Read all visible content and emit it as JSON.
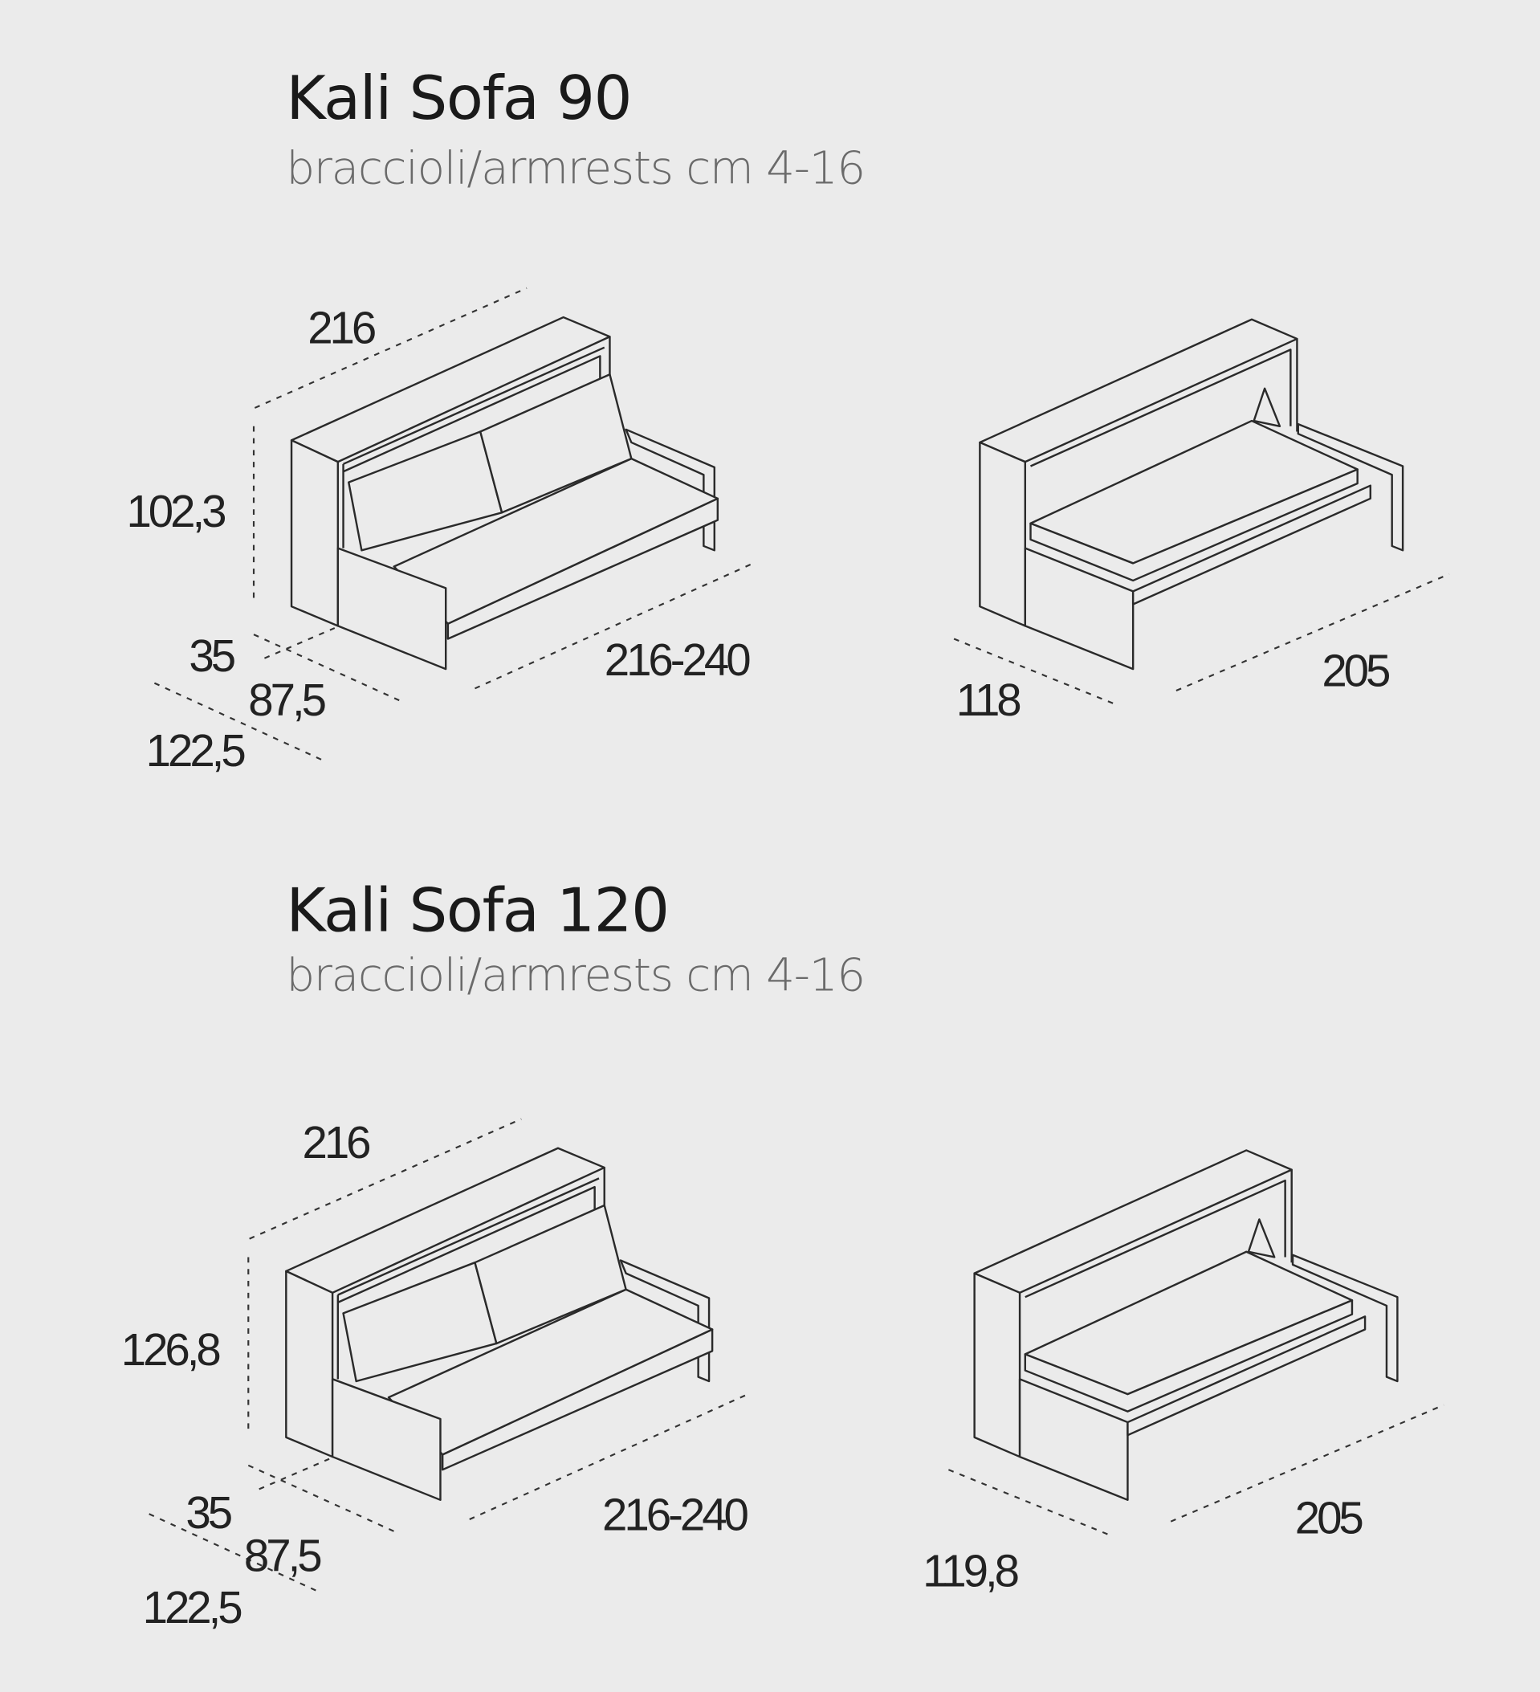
{
  "models": [
    {
      "title": "Kali Sofa 90",
      "subtitle": "braccioli/armrests cm 4-16",
      "sofa_dims": {
        "width_top": "216",
        "height": "102,3",
        "depth_cabinet": "35",
        "depth_seat": "87,5",
        "depth_total": "122,5",
        "width_open": "216-240"
      },
      "bed_dims": {
        "depth": "118",
        "length": "205"
      }
    },
    {
      "title": "Kali Sofa 120",
      "subtitle": "braccioli/armrests cm 4-16",
      "sofa_dims": {
        "width_top": "216",
        "height": "126,8",
        "depth_cabinet": "35",
        "depth_seat": "87,5",
        "depth_total": "122,5",
        "width_open": "216-240"
      },
      "bed_dims": {
        "depth": "119,8",
        "length": "205"
      }
    }
  ],
  "colors": {
    "background": "#ebebeb",
    "line": "#2a2a2a",
    "subtitle": "#6a6a6a"
  }
}
